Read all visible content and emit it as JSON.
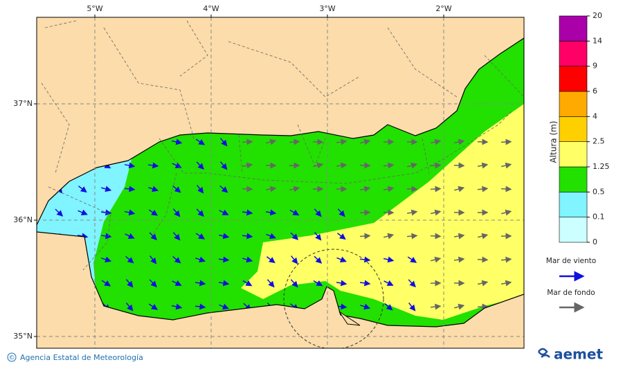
{
  "map": {
    "lon_ticks": [
      {
        "value": -5,
        "label": "5°W"
      },
      {
        "value": -4,
        "label": "4°W"
      },
      {
        "value": -3,
        "label": "3°W"
      },
      {
        "value": -2,
        "label": "2°W"
      }
    ],
    "lat_ticks": [
      {
        "value": 37,
        "label": "37°N"
      },
      {
        "value": 36,
        "label": "36°N"
      },
      {
        "value": 35,
        "label": "35°N"
      }
    ]
  },
  "legend": {
    "title": "Altura (m)",
    "levels": [
      0,
      0.1,
      0.5,
      1.25,
      2.5,
      4,
      6,
      9,
      14,
      20
    ],
    "colors": [
      "#ccffff",
      "#80f4ff",
      "#22e000",
      "#ffff66",
      "#ffd000",
      "#ffaa00",
      "#ff0000",
      "#ff0066",
      "#aa00aa"
    ],
    "wind_sea": "Mar de viento",
    "swell": "Mar de fondo"
  },
  "footer": {
    "copyright": "©",
    "agency": "Agencia Estatal de Meteorología",
    "logo": "aemet"
  }
}
